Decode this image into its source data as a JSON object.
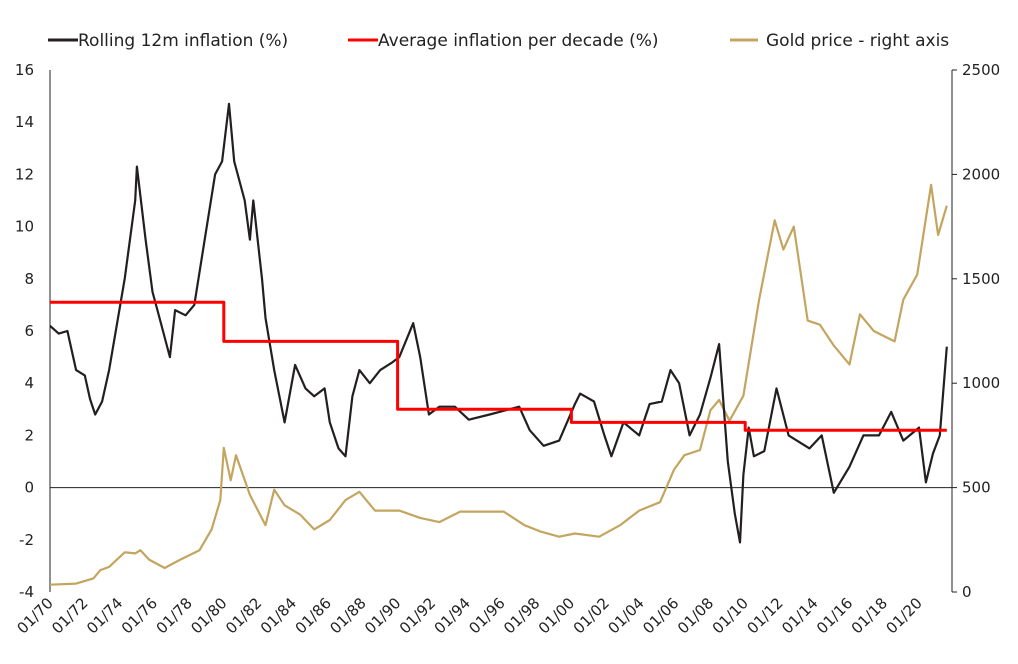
{
  "chart_data": {
    "type": "line",
    "title": "",
    "legend": {
      "placement": "top",
      "entries": [
        "Rolling 12m inflation (%)",
        "Average inflation per decade (%)",
        "Gold price - right axis"
      ]
    },
    "x_tick_labels": [
      "01/70",
      "01/72",
      "01/74",
      "01/76",
      "01/78",
      "01/80",
      "01/82",
      "01/84",
      "01/86",
      "01/88",
      "01/90",
      "01/92",
      "01/94",
      "01/96",
      "01/98",
      "01/00",
      "01/02",
      "01/04",
      "01/06",
      "01/08",
      "01/10",
      "01/12",
      "01/14",
      "01/16",
      "01/18",
      "01/20"
    ],
    "x_range": [
      1970,
      2021.9
    ],
    "y_left": {
      "range": [
        -4,
        16
      ],
      "ticks": [
        -4,
        -2,
        0,
        2,
        4,
        6,
        8,
        10,
        12,
        14,
        16
      ]
    },
    "y_right": {
      "range": [
        0,
        2500
      ],
      "ticks": [
        0,
        500,
        1000,
        1500,
        2000,
        2500
      ]
    },
    "grid": false,
    "series": [
      {
        "name": "Rolling 12m inflation (%)",
        "axis": "left",
        "color": "#231f20",
        "points": [
          [
            1970,
            6.2
          ],
          [
            1970.5,
            5.9
          ],
          [
            1971,
            6.0
          ],
          [
            1971.5,
            4.5
          ],
          [
            1972,
            4.3
          ],
          [
            1972.3,
            3.4
          ],
          [
            1972.6,
            2.8
          ],
          [
            1973,
            3.3
          ],
          [
            1973.4,
            4.5
          ],
          [
            1974.3,
            8
          ],
          [
            1974.9,
            11
          ],
          [
            1975.0,
            12.3
          ],
          [
            1975.5,
            9.5
          ],
          [
            1975.9,
            7.5
          ],
          [
            1976.3,
            6.5
          ],
          [
            1976.9,
            5.0
          ],
          [
            1977.2,
            6.8
          ],
          [
            1977.8,
            6.6
          ],
          [
            1978.3,
            7.0
          ],
          [
            1978.9,
            9.5
          ],
          [
            1979.5,
            12
          ],
          [
            1979.9,
            12.5
          ],
          [
            1980.3,
            14.7
          ],
          [
            1980.6,
            12.5
          ],
          [
            1981.2,
            11
          ],
          [
            1981.5,
            9.5
          ],
          [
            1981.7,
            11
          ],
          [
            1982.2,
            8
          ],
          [
            1982.4,
            6.5
          ],
          [
            1982.9,
            4.5
          ],
          [
            1983.5,
            2.5
          ],
          [
            1984.1,
            4.7
          ],
          [
            1984.7,
            3.8
          ],
          [
            1985.2,
            3.5
          ],
          [
            1985.8,
            3.8
          ],
          [
            1986.1,
            2.5
          ],
          [
            1986.6,
            1.5
          ],
          [
            1987,
            1.2
          ],
          [
            1987.4,
            3.5
          ],
          [
            1987.8,
            4.5
          ],
          [
            1988.4,
            4.0
          ],
          [
            1989,
            4.5
          ],
          [
            1989.7,
            4.8
          ],
          [
            1990.1,
            5.0
          ],
          [
            1990.9,
            6.3
          ],
          [
            1991.3,
            5.0
          ],
          [
            1991.8,
            2.8
          ],
          [
            1992.4,
            3.1
          ],
          [
            1993.3,
            3.1
          ],
          [
            1994.1,
            2.6
          ],
          [
            1995.3,
            2.8
          ],
          [
            1997,
            3.1
          ],
          [
            1997.6,
            2.2
          ],
          [
            1998.4,
            1.6
          ],
          [
            1999.3,
            1.8
          ],
          [
            2000.2,
            3.2
          ],
          [
            2000.5,
            3.6
          ],
          [
            2001.3,
            3.3
          ],
          [
            2001.9,
            2.0
          ],
          [
            2002.3,
            1.2
          ],
          [
            2003,
            2.5
          ],
          [
            2003.9,
            2.0
          ],
          [
            2004.5,
            3.2
          ],
          [
            2005.2,
            3.3
          ],
          [
            2005.7,
            4.5
          ],
          [
            2006.2,
            4.0
          ],
          [
            2006.8,
            2.0
          ],
          [
            2007.4,
            2.8
          ],
          [
            2008,
            4.2
          ],
          [
            2008.5,
            5.5
          ],
          [
            2009,
            1.0
          ],
          [
            2009.4,
            -1.0
          ],
          [
            2009.7,
            -2.1
          ],
          [
            2009.9,
            0.5
          ],
          [
            2010.2,
            2.3
          ],
          [
            2010.5,
            1.2
          ],
          [
            2011.1,
            1.4
          ],
          [
            2011.8,
            3.8
          ],
          [
            2012.5,
            2.0
          ],
          [
            2013.7,
            1.5
          ],
          [
            2014.4,
            2.0
          ],
          [
            2015.1,
            -0.2
          ],
          [
            2016,
            0.8
          ],
          [
            2016.8,
            2.0
          ],
          [
            2017.7,
            2.0
          ],
          [
            2018.4,
            2.9
          ],
          [
            2019.1,
            1.8
          ],
          [
            2020,
            2.3
          ],
          [
            2020.4,
            0.2
          ],
          [
            2020.8,
            1.3
          ],
          [
            2021.2,
            2.0
          ],
          [
            2021.6,
            5.4
          ]
        ]
      },
      {
        "name": "Average inflation per decade (%)",
        "axis": "left",
        "color": "#ff0000",
        "step": true,
        "points": [
          [
            1970,
            7.1
          ],
          [
            1980,
            7.1
          ],
          [
            1980,
            5.6
          ],
          [
            1990,
            5.6
          ],
          [
            1990,
            3.0
          ],
          [
            2000,
            3.0
          ],
          [
            2000,
            2.5
          ],
          [
            2010,
            2.5
          ],
          [
            2010,
            2.2
          ],
          [
            2021.6,
            2.2
          ]
        ]
      },
      {
        "name": "Gold price - right axis",
        "axis": "right",
        "color": "#c4a55f",
        "points": [
          [
            1970,
            35
          ],
          [
            1971.5,
            40
          ],
          [
            1972.5,
            65
          ],
          [
            1972.9,
            105
          ],
          [
            1973.4,
            120
          ],
          [
            1974.3,
            190
          ],
          [
            1974.9,
            185
          ],
          [
            1975.2,
            200
          ],
          [
            1975.7,
            155
          ],
          [
            1976.6,
            115
          ],
          [
            1977.5,
            155
          ],
          [
            1978.6,
            200
          ],
          [
            1979.3,
            300
          ],
          [
            1979.8,
            440
          ],
          [
            1980,
            690
          ],
          [
            1980.4,
            535
          ],
          [
            1980.7,
            655
          ],
          [
            1981.5,
            465
          ],
          [
            1982.4,
            320
          ],
          [
            1982.9,
            490
          ],
          [
            1983.5,
            415
          ],
          [
            1984.4,
            370
          ],
          [
            1985.2,
            300
          ],
          [
            1986.1,
            345
          ],
          [
            1987,
            440
          ],
          [
            1987.8,
            480
          ],
          [
            1988.7,
            390
          ],
          [
            1990.1,
            390
          ],
          [
            1991.3,
            355
          ],
          [
            1992.4,
            335
          ],
          [
            1993.6,
            385
          ],
          [
            1994.7,
            385
          ],
          [
            1996.1,
            385
          ],
          [
            1997.3,
            320
          ],
          [
            1998.2,
            290
          ],
          [
            1999.3,
            265
          ],
          [
            2000.2,
            280
          ],
          [
            2001.6,
            265
          ],
          [
            2002.8,
            320
          ],
          [
            2003.9,
            390
          ],
          [
            2005.1,
            430
          ],
          [
            2005.9,
            585
          ],
          [
            2006.5,
            655
          ],
          [
            2007.4,
            680
          ],
          [
            2008,
            870
          ],
          [
            2008.5,
            920
          ],
          [
            2009.1,
            820
          ],
          [
            2009.9,
            940
          ],
          [
            2010.8,
            1400
          ],
          [
            2011.7,
            1780
          ],
          [
            2012.2,
            1640
          ],
          [
            2012.8,
            1750
          ],
          [
            2013.6,
            1300
          ],
          [
            2014.3,
            1280
          ],
          [
            2015.1,
            1180
          ],
          [
            2016,
            1090
          ],
          [
            2016.6,
            1330
          ],
          [
            2017.4,
            1250
          ],
          [
            2018.6,
            1200
          ],
          [
            2019.1,
            1400
          ],
          [
            2019.9,
            1520
          ],
          [
            2020.7,
            1950
          ],
          [
            2021.1,
            1710
          ],
          [
            2021.6,
            1850
          ]
        ]
      }
    ]
  }
}
